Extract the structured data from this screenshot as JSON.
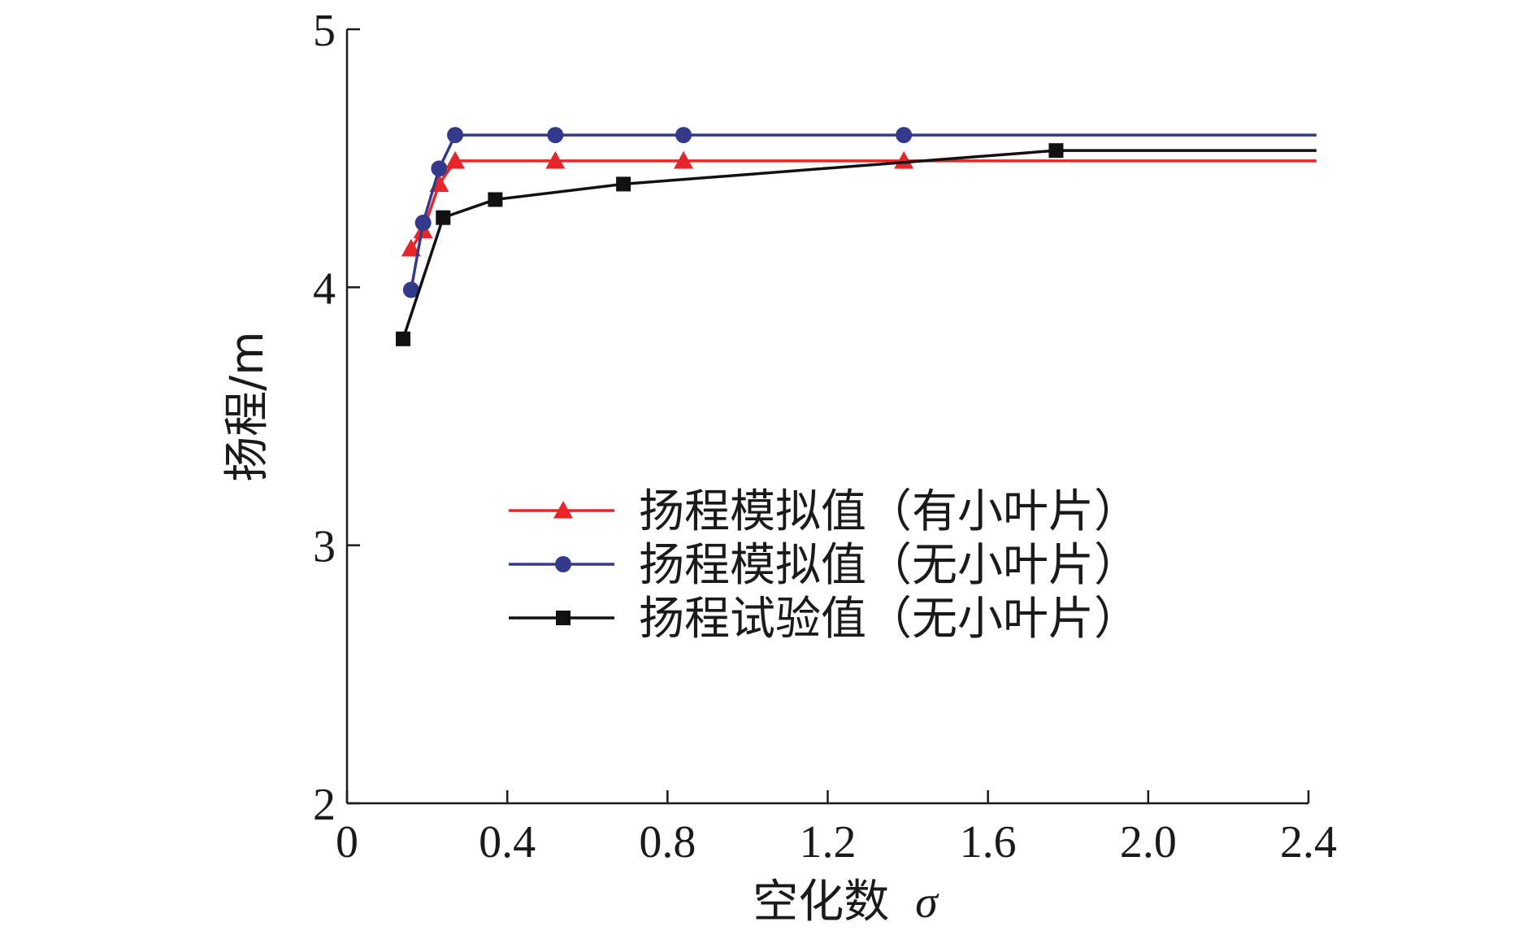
{
  "chart_data": {
    "type": "line",
    "title": "",
    "xlabel": "空化数 σ",
    "xlabel_text": "空化数",
    "xlabel_symbol": "σ",
    "ylabel": "扬程/m",
    "xlim": [
      0,
      2.4
    ],
    "ylim": [
      2,
      5
    ],
    "xticks": [
      0,
      0.4,
      0.8,
      1.2,
      1.6,
      2.0,
      2.4
    ],
    "xtick_labels": [
      "0",
      "0.4",
      "0.8",
      "1.2",
      "1.6",
      "2.0",
      "2.4"
    ],
    "yticks": [
      2,
      3,
      4,
      5
    ],
    "ytick_labels": [
      "2",
      "3",
      "4",
      "5"
    ],
    "grid": false,
    "legend_position": "center-right",
    "series": [
      {
        "name": "扬程模拟值（有小叶片）",
        "color": "#e8262a",
        "marker": "triangle",
        "x": [
          0.16,
          0.19,
          0.23,
          0.27,
          0.52,
          0.84,
          1.39,
          2.42
        ],
        "y": [
          4.15,
          4.22,
          4.4,
          4.49,
          4.49,
          4.49,
          4.49,
          4.49
        ],
        "marker_points": 7
      },
      {
        "name": "扬程模拟值（无小叶片）",
        "color": "#333a8c",
        "marker": "circle",
        "x": [
          0.16,
          0.19,
          0.23,
          0.27,
          0.52,
          0.84,
          1.39,
          2.42
        ],
        "y": [
          3.99,
          4.25,
          4.46,
          4.59,
          4.59,
          4.59,
          4.59,
          4.59
        ],
        "marker_points": 7
      },
      {
        "name": "扬程试验值（无小叶片）",
        "color": "#111111",
        "marker": "square",
        "x": [
          0.14,
          0.24,
          0.37,
          0.69,
          1.77,
          2.42
        ],
        "y": [
          3.8,
          4.27,
          4.34,
          4.4,
          4.53,
          4.53
        ],
        "marker_points": 5
      }
    ]
  }
}
